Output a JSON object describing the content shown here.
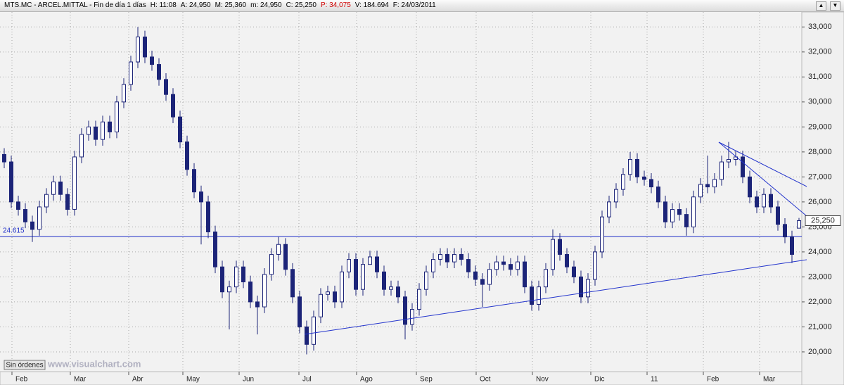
{
  "header": {
    "items": [
      "MTS.MC - ARCEL.MITTAL - Fin de día 1 días",
      "H: 11:08",
      "A: 24,950",
      "M: 25,360",
      "m: 24,950",
      "C: 25,250",
      "P: 34,075",
      "V: 184.694",
      "F: 24/03/2011"
    ]
  },
  "overlay": {
    "button": "Sin órdenes",
    "watermark": "www.visualchart.com"
  },
  "chart_data": {
    "type": "candlestick",
    "up_color": "#ffffff",
    "down_color": "#1c2478",
    "line_color": "#1c2478",
    "grid": true,
    "ylim": [
      19210,
      33600
    ],
    "yticks": [
      {
        "value": 20000,
        "label": "20,000"
      },
      {
        "value": 21000,
        "label": "21,000"
      },
      {
        "value": 22000,
        "label": "22,000"
      },
      {
        "value": 23000,
        "label": "23,000"
      },
      {
        "value": 24000,
        "label": "24,000"
      },
      {
        "value": 25000,
        "label": "25,000"
      },
      {
        "value": 26000,
        "label": "26,000"
      },
      {
        "value": 27000,
        "label": "27,000"
      },
      {
        "value": 28000,
        "label": "28,000"
      },
      {
        "value": 29000,
        "label": "29,000"
      },
      {
        "value": 30000,
        "label": "30,000"
      },
      {
        "value": 31000,
        "label": "31,000"
      },
      {
        "value": 32000,
        "label": "32,000"
      },
      {
        "value": 33000,
        "label": "33,000"
      }
    ],
    "xlim": [
      -0.6,
      113.4
    ],
    "xticks": [
      {
        "value": 1.1,
        "label": "Feb"
      },
      {
        "value": 9.4,
        "label": "Mar"
      },
      {
        "value": 17.7,
        "label": "Abr"
      },
      {
        "value": 25.4,
        "label": "May"
      },
      {
        "value": 33.4,
        "label": "Jun"
      },
      {
        "value": 41.9,
        "label": "Jul"
      },
      {
        "value": 50.1,
        "label": "Ago"
      },
      {
        "value": 58.6,
        "label": "Sep"
      },
      {
        "value": 67.1,
        "label": "Oct"
      },
      {
        "value": 75.1,
        "label": "Nov"
      },
      {
        "value": 83.4,
        "label": "Dic"
      },
      {
        "value": 91.4,
        "label": "11"
      },
      {
        "value": 99.4,
        "label": "Feb"
      },
      {
        "value": 107.4,
        "label": "Mar"
      }
    ],
    "hline": {
      "value": 24615,
      "label": "24.615",
      "color": "#1f2fc8"
    },
    "last_label": {
      "value": 25250,
      "label": "25,250"
    },
    "open": [
      27900,
      27600,
      26000,
      25700,
      25200,
      24900,
      25800,
      26300,
      26800,
      26300,
      25700,
      27800,
      28700,
      29000,
      28500,
      29200,
      28800,
      30000,
      30700,
      31600,
      32600,
      31800,
      31500,
      30900,
      30300,
      29400,
      28400,
      27300,
      26400,
      26000,
      24800,
      23400,
      22400,
      22600,
      23400,
      22800,
      22000,
      21800,
      23100,
      23900,
      24300,
      23300,
      22200,
      21000,
      20300,
      21400,
      22300,
      22400,
      22000,
      23200,
      23700,
      22500,
      23500,
      23800,
      23200,
      22500,
      22600,
      22200,
      21100,
      21700,
      22500,
      23200,
      23700,
      23900,
      23600,
      23900,
      23700,
      23200,
      22900,
      22700,
      23300,
      23600,
      23500,
      23300,
      23600,
      22600,
      21900,
      22600,
      23300,
      24500,
      23900,
      23400,
      23000,
      22200,
      22900,
      24000,
      25400,
      26000,
      26500,
      27100,
      27700,
      27000,
      26900,
      26600,
      26000,
      25200,
      25700,
      25500,
      25000,
      26200,
      26700,
      26600,
      26900,
      27600,
      27700,
      27800,
      27000,
      26200,
      25800,
      26300,
      25800,
      25100,
      24600,
      24950
    ],
    "high": [
      28150,
      27850,
      26250,
      25950,
      25450,
      26050,
      26550,
      27050,
      27050,
      26550,
      28050,
      28950,
      29250,
      29250,
      29450,
      29450,
      30250,
      30950,
      31850,
      33000,
      32850,
      32050,
      31750,
      31150,
      30550,
      29650,
      28650,
      27550,
      26650,
      26250,
      25050,
      23650,
      22850,
      23650,
      23650,
      23050,
      22250,
      23350,
      24150,
      24600,
      24550,
      23550,
      22450,
      21250,
      21650,
      22550,
      22650,
      22650,
      23450,
      23950,
      23950,
      23750,
      24050,
      24050,
      23450,
      22850,
      22850,
      22450,
      21950,
      22750,
      23450,
      23950,
      24150,
      24150,
      24150,
      24150,
      23950,
      23450,
      23150,
      23550,
      23850,
      23850,
      23750,
      23850,
      23850,
      22850,
      22850,
      23550,
      24900,
      24750,
      24150,
      23650,
      23250,
      23150,
      24250,
      25650,
      26250,
      26750,
      27350,
      28000,
      27950,
      27250,
      27150,
      26850,
      26250,
      25950,
      25950,
      25750,
      26450,
      26950,
      27850,
      27150,
      27850,
      28400,
      28050,
      28050,
      27250,
      26450,
      26550,
      26550,
      26050,
      25350,
      24850,
      25360
    ],
    "low": [
      27350,
      25750,
      25450,
      24950,
      24400,
      24650,
      25550,
      26050,
      26050,
      25450,
      25450,
      27550,
      28450,
      28250,
      28250,
      28550,
      28550,
      29750,
      30450,
      31350,
      31550,
      31250,
      30650,
      30050,
      29150,
      28150,
      27050,
      26150,
      24300,
      24550,
      23150,
      22150,
      20900,
      22350,
      22550,
      21750,
      20700,
      21550,
      22850,
      23650,
      23050,
      21950,
      20750,
      19900,
      20050,
      21150,
      22050,
      21750,
      21750,
      22950,
      22250,
      22250,
      23550,
      22950,
      22250,
      22250,
      21950,
      20500,
      20850,
      21450,
      22250,
      22950,
      23450,
      23350,
      23350,
      23450,
      22950,
      22650,
      21800,
      22450,
      23050,
      23250,
      23050,
      23050,
      22350,
      21650,
      21650,
      22350,
      23050,
      23650,
      23150,
      22750,
      21950,
      21950,
      22650,
      23750,
      25150,
      25750,
      26250,
      26850,
      26750,
      26650,
      26350,
      25750,
      24950,
      24950,
      25250,
      24650,
      24750,
      25950,
      26350,
      26350,
      26650,
      27350,
      27450,
      26750,
      25950,
      25550,
      25550,
      25550,
      24850,
      24350,
      23550,
      24950
    ],
    "close": [
      27600,
      26000,
      25700,
      25200,
      24900,
      25800,
      26300,
      26800,
      26300,
      25700,
      27800,
      28700,
      29000,
      28500,
      29200,
      28800,
      30000,
      30700,
      31600,
      32600,
      31800,
      31500,
      30900,
      30300,
      29400,
      28400,
      27300,
      26400,
      26000,
      24800,
      23400,
      22400,
      22600,
      23400,
      22800,
      22000,
      21800,
      23100,
      23900,
      24300,
      23300,
      22200,
      21000,
      20300,
      21400,
      22300,
      22400,
      22000,
      23200,
      23700,
      22500,
      23500,
      23800,
      23200,
      22500,
      22600,
      22200,
      21100,
      21700,
      22500,
      23200,
      23700,
      23900,
      23600,
      23900,
      23700,
      23200,
      22900,
      22700,
      23300,
      23600,
      23500,
      23300,
      23600,
      22600,
      21900,
      22600,
      23300,
      24500,
      23900,
      23400,
      23000,
      22200,
      22900,
      24000,
      25400,
      26000,
      26500,
      27100,
      27700,
      27000,
      26900,
      26600,
      26000,
      25200,
      25700,
      25500,
      25000,
      26200,
      26700,
      26600,
      26900,
      27600,
      27700,
      27800,
      27000,
      26200,
      25800,
      26300,
      25800,
      25100,
      24600,
      23900,
      25250
    ]
  }
}
